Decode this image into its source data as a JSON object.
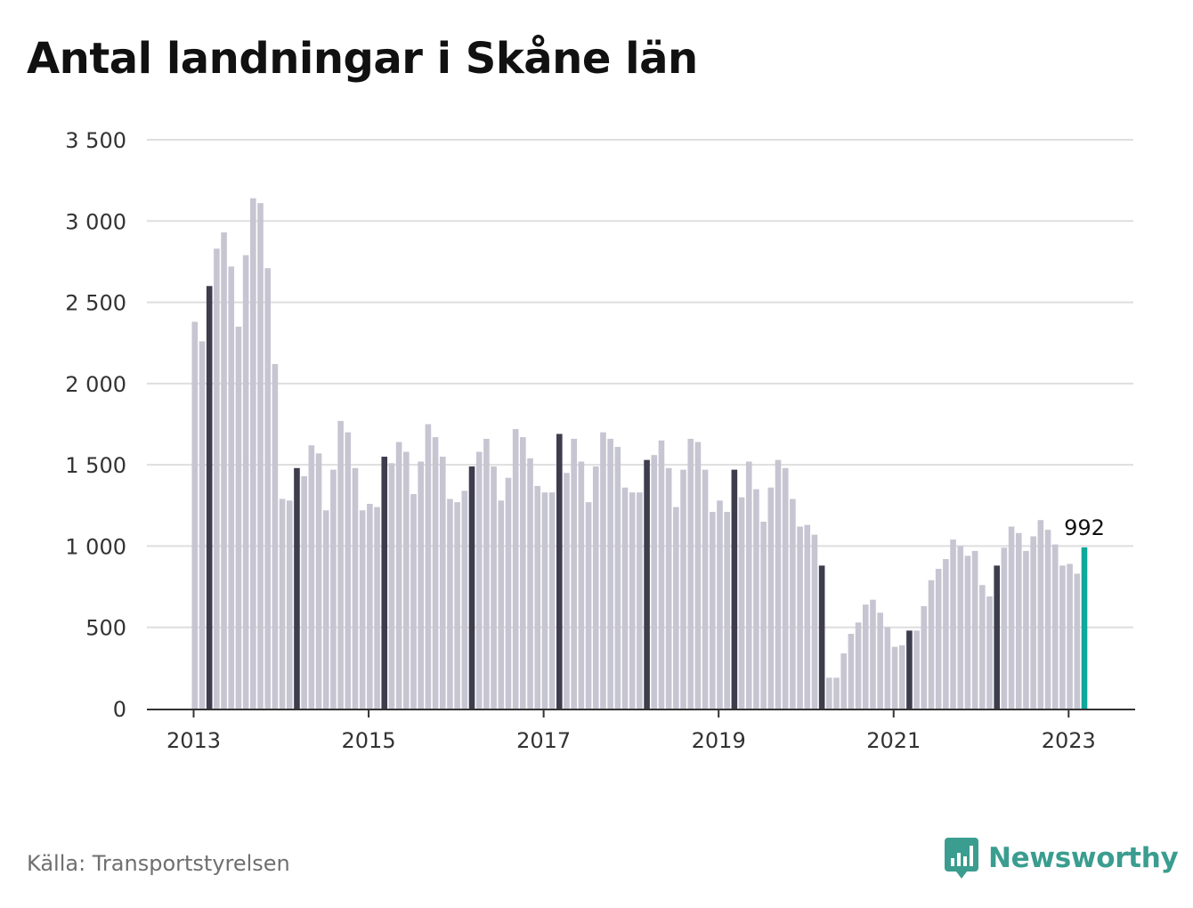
{
  "title": "Antal landningar i Skåne län",
  "source": "Källa: Transportstyrelsen",
  "brand": "Newsworthy",
  "colors": {
    "bar": "#c6c5d1",
    "march": "#3e3d4d",
    "latest": "#0fa89a",
    "grid": "#dedede",
    "axis": "#333333"
  },
  "chart_data": {
    "type": "bar",
    "title": "Antal landningar i Skåne län",
    "xlabel": "",
    "ylabel": "",
    "ylim": [
      0,
      3500
    ],
    "yticks": [
      0,
      500,
      1000,
      1500,
      2000,
      2500,
      3000,
      3500
    ],
    "ytick_labels": [
      "0",
      "500",
      "1 000",
      "1 500",
      "2 000",
      "2 500",
      "3 000",
      "3 500"
    ],
    "xtick_labels": [
      "2013",
      "2015",
      "2017",
      "2019",
      "2021",
      "2023"
    ],
    "start": "2013-01",
    "highlight_month": "March",
    "grid": true,
    "legend": "none",
    "annotation": {
      "month": "2023-03",
      "text": "992"
    },
    "values": [
      2380,
      2260,
      2600,
      2830,
      2930,
      2720,
      2350,
      2790,
      3140,
      3110,
      2710,
      2120,
      1290,
      1280,
      1480,
      1430,
      1620,
      1570,
      1220,
      1470,
      1770,
      1700,
      1480,
      1220,
      1260,
      1240,
      1550,
      1510,
      1640,
      1580,
      1320,
      1520,
      1750,
      1670,
      1550,
      1290,
      1270,
      1340,
      1490,
      1580,
      1660,
      1490,
      1280,
      1420,
      1720,
      1670,
      1540,
      1370,
      1330,
      1330,
      1690,
      1450,
      1660,
      1520,
      1270,
      1490,
      1700,
      1660,
      1610,
      1360,
      1330,
      1330,
      1530,
      1560,
      1650,
      1480,
      1240,
      1470,
      1660,
      1640,
      1470,
      1210,
      1280,
      1210,
      1470,
      1300,
      1520,
      1350,
      1150,
      1360,
      1530,
      1480,
      1290,
      1120,
      1130,
      1070,
      880,
      190,
      190,
      340,
      460,
      530,
      640,
      670,
      590,
      500,
      380,
      390,
      480,
      480,
      630,
      790,
      860,
      920,
      1040,
      1000,
      940,
      970,
      760,
      690,
      880,
      990,
      1120,
      1080,
      970,
      1060,
      1160,
      1100,
      1010,
      880,
      890,
      830,
      992
    ]
  }
}
